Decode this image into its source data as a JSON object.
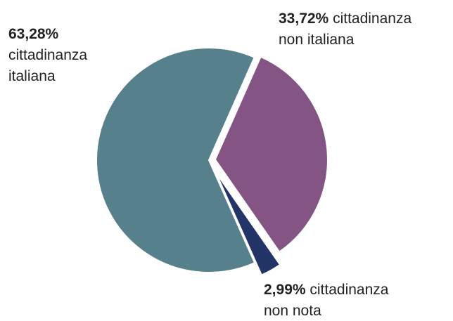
{
  "chart_data": {
    "type": "pie",
    "categories": [
      "cittadinanza italiana",
      "cittadinanza non italiana",
      "cittadinanza non nota"
    ],
    "values": [
      63.28,
      33.72,
      2.99
    ],
    "value_labels": [
      "63,28%",
      "33,72%",
      "2,99%"
    ],
    "colors": [
      "#56808c",
      "#845484",
      "#233466"
    ]
  }
}
